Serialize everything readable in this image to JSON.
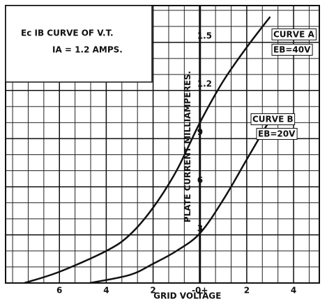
{
  "chart_data": {
    "type": "line",
    "title": "Ec IB CURVE OF V.T.",
    "subtitle": "IA = 1.2 AMPS.",
    "xlabel": "GRID VOLTAGE",
    "ylabel": "PLATE CURRENT MILLIAMPERES.",
    "xlim": [
      -8.3,
      5.1
    ],
    "ylim": [
      0,
      1.73
    ],
    "xticks": [
      {
        "value": -6,
        "label": "6"
      },
      {
        "value": -4,
        "label": "4"
      },
      {
        "value": -2,
        "label": "2"
      },
      {
        "value": 0,
        "label": "-0+"
      },
      2,
      4
    ],
    "yticks": [
      {
        "value": 0.3,
        "label": "3"
      },
      {
        "value": 0.6,
        "label": "6"
      },
      {
        "value": 0.9,
        "label": "9"
      },
      1.2,
      1.5
    ],
    "grid": true,
    "series": [
      {
        "name": "CURVE A",
        "note": "EB=40V",
        "color": "#111111",
        "x": [
          -7.5,
          -6,
          -4,
          -3,
          -2,
          -1,
          0,
          1,
          2,
          3
        ],
        "values": [
          0,
          0.07,
          0.2,
          0.3,
          0.47,
          0.7,
          1.0,
          1.26,
          1.47,
          1.66
        ]
      },
      {
        "name": "CURVE B",
        "note": "EB=20V",
        "color": "#111111",
        "x": [
          -4.7,
          -3,
          -2,
          -1,
          0,
          1,
          2,
          3
        ],
        "values": [
          0,
          0.05,
          0.12,
          0.2,
          0.31,
          0.52,
          0.77,
          1.02
        ]
      }
    ]
  }
}
